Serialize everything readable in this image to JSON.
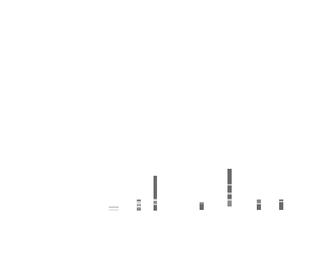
{
  "screen": {
    "background_color": "#ffffff",
    "visible_text": []
  },
  "marks": {
    "colors": {
      "dark": "#6b6b6b",
      "mid": "#8c8c8c",
      "light": "#c8c8c8",
      "faint": "#e2e2e2"
    },
    "stacks": [
      {
        "name": "glyph-stack-1",
        "shades": [
          "light",
          "faint"
        ]
      },
      {
        "name": "glyph-stack-2",
        "shades": [
          "mid",
          "light",
          "mid",
          "light",
          "mid"
        ]
      },
      {
        "name": "glyph-stack-3",
        "shades": [
          "dark",
          "light",
          "mid",
          "light",
          "dark"
        ]
      },
      {
        "name": "glyph-stack-4",
        "shades": [
          "mid",
          "dark"
        ]
      },
      {
        "name": "glyph-stack-5",
        "shades": [
          "dark",
          "light",
          "dark",
          "light",
          "dark",
          "light",
          "mid"
        ]
      },
      {
        "name": "glyph-stack-6",
        "shades": [
          "mid",
          "light",
          "dark"
        ]
      },
      {
        "name": "glyph-stack-7",
        "shades": [
          "dark",
          "light",
          "dark"
        ]
      }
    ]
  }
}
